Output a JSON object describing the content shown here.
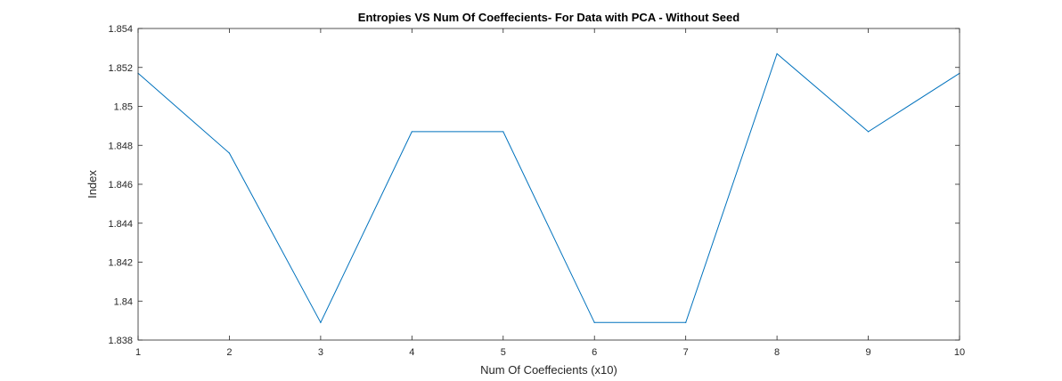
{
  "chart_data": {
    "type": "line",
    "title": "Entropies VS Num Of Coeffecients- For Data with PCA - Without Seed",
    "xlabel": "Num Of Coeffecients (x10)",
    "ylabel": "Index",
    "xlim": [
      1,
      10
    ],
    "ylim": [
      1.838,
      1.854
    ],
    "xticks": [
      1,
      2,
      3,
      4,
      5,
      6,
      7,
      8,
      9,
      10
    ],
    "xtick_labels": [
      "1",
      "2",
      "3",
      "4",
      "5",
      "6",
      "7",
      "8",
      "9",
      "10"
    ],
    "yticks": [
      1.838,
      1.84,
      1.842,
      1.844,
      1.846,
      1.848,
      1.85,
      1.852,
      1.854
    ],
    "ytick_labels": [
      "1.838",
      "1.84",
      "1.842",
      "1.844",
      "1.846",
      "1.848",
      "1.85",
      "1.852",
      "1.854"
    ],
    "grid": false,
    "series": [
      {
        "color": "#0072bd",
        "x": [
          1,
          2,
          3,
          4,
          5,
          6,
          7,
          8,
          9,
          10
        ],
        "y": [
          1.8517,
          1.8476,
          1.8389,
          1.8487,
          1.8487,
          1.8389,
          1.8389,
          1.8527,
          1.8487,
          1.8517
        ]
      }
    ]
  }
}
